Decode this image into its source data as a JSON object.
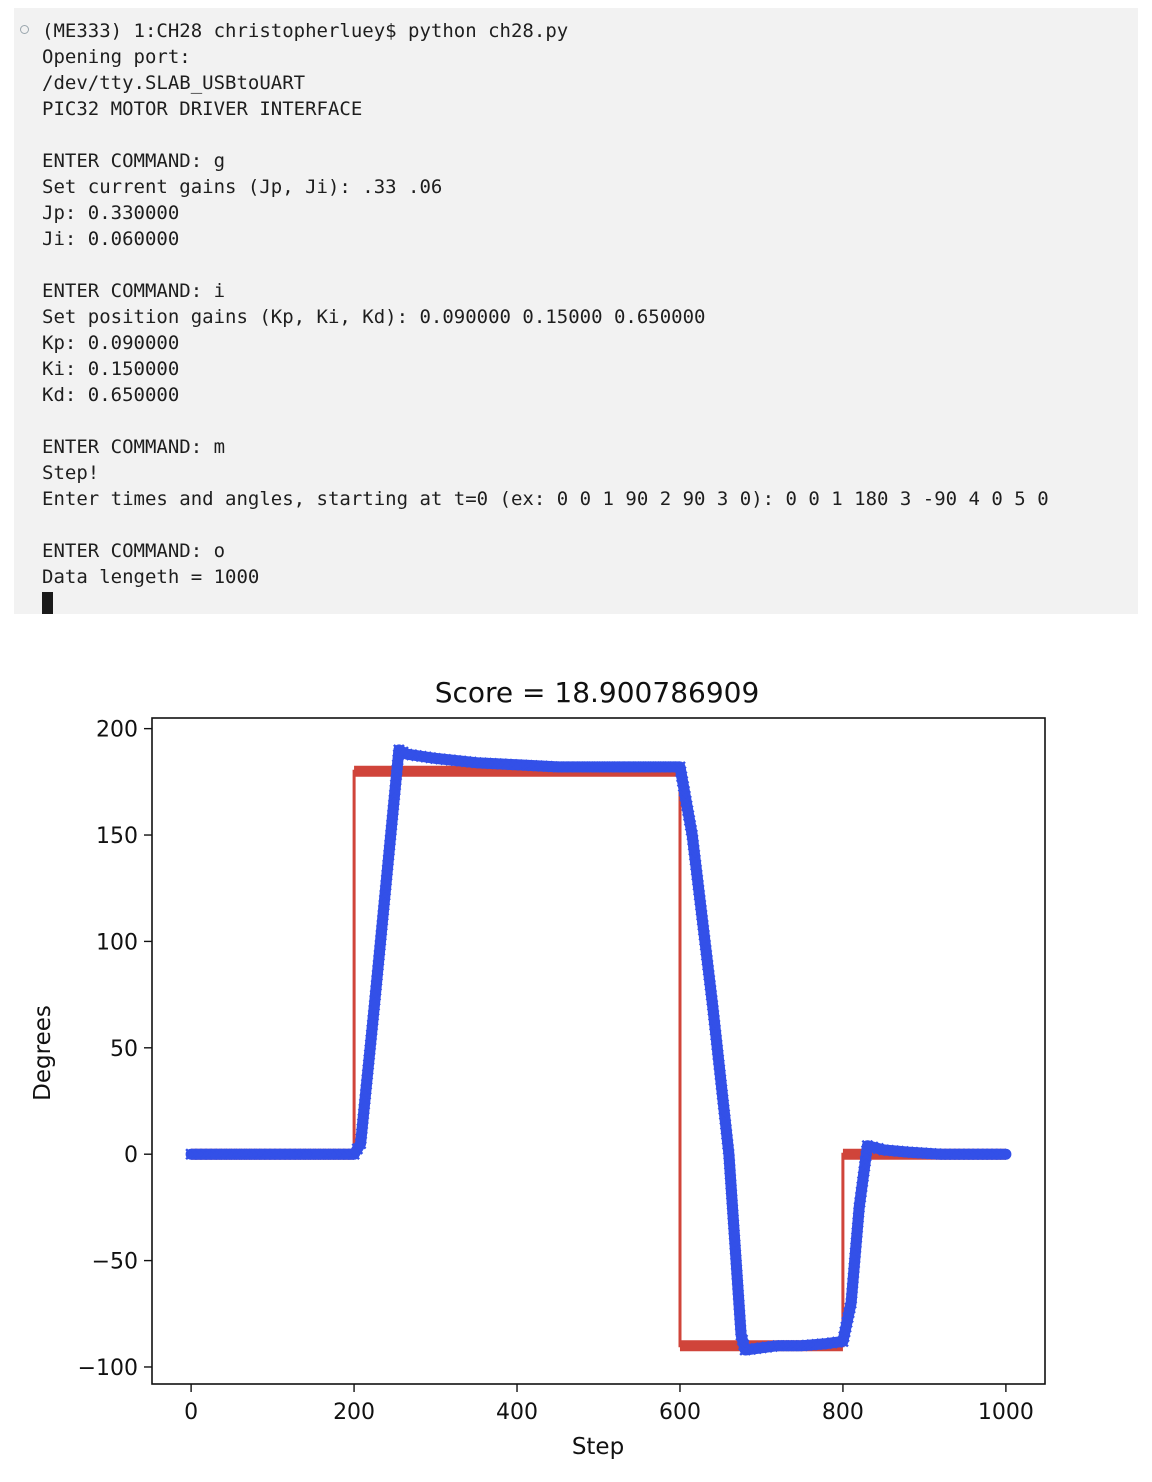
{
  "terminal": {
    "lines": [
      "(ME333) 1:CH28 christopherluey$ python ch28.py",
      "Opening port:",
      "/dev/tty.SLAB_USBtoUART",
      "PIC32 MOTOR DRIVER INTERFACE",
      "",
      "ENTER COMMAND: g",
      "Set current gains (Jp, Ji): .33 .06",
      "Jp: 0.330000",
      "Ji: 0.060000",
      "",
      "ENTER COMMAND: i",
      "Set position gains (Kp, Ki, Kd): 0.090000 0.15000 0.650000",
      "Kp: 0.090000",
      "Ki: 0.150000",
      "Kd: 0.650000",
      "",
      "ENTER COMMAND: m",
      "Step!",
      "Enter times and angles, starting at t=0 (ex: 0 0 1 90 2 90 3 0): 0 0 1 180 3 -90 4 0 5 0",
      "",
      "ENTER COMMAND: o",
      "Data lengeth = 1000"
    ]
  },
  "chart_data": {
    "type": "line",
    "title": "Score = 18.900786909",
    "xlabel": "Step",
    "ylabel": "Degrees",
    "xlim": [
      -48,
      1048
    ],
    "ylim": [
      -108,
      205
    ],
    "xticks": [
      0,
      200,
      400,
      600,
      800,
      1000
    ],
    "xtick_labels": [
      "0",
      "200",
      "400",
      "600",
      "800",
      "1000"
    ],
    "yticks": [
      200,
      150,
      100,
      50,
      0,
      -50,
      -100
    ],
    "ytick_labels": [
      "200",
      "150",
      "100",
      "50",
      "0",
      "−50",
      "−100"
    ],
    "grid": false,
    "legend": "none",
    "series": [
      {
        "color": "#d0443a",
        "style": "line",
        "x": [
          0,
          200,
          200,
          600,
          600,
          800,
          800,
          1000
        ],
        "y": [
          0,
          0,
          180,
          180,
          -90,
          -90,
          0,
          0
        ]
      },
      {
        "color": "#3350e8",
        "style": "line-x-markers",
        "x": [
          0,
          200,
          208,
          225,
          245,
          255,
          265,
          300,
          350,
          400,
          450,
          500,
          550,
          600,
          615,
          640,
          660,
          675,
          680,
          700,
          720,
          750,
          780,
          800,
          810,
          820,
          830,
          850,
          880,
          920,
          960,
          1000
        ],
        "y": [
          0,
          0,
          5,
          70,
          150,
          190,
          188,
          186,
          184,
          183,
          182,
          182,
          182,
          182,
          150,
          70,
          0,
          -85,
          -92,
          -91,
          -90,
          -90,
          -89,
          -88,
          -70,
          -25,
          4,
          2,
          1,
          0,
          0,
          0
        ]
      }
    ]
  }
}
